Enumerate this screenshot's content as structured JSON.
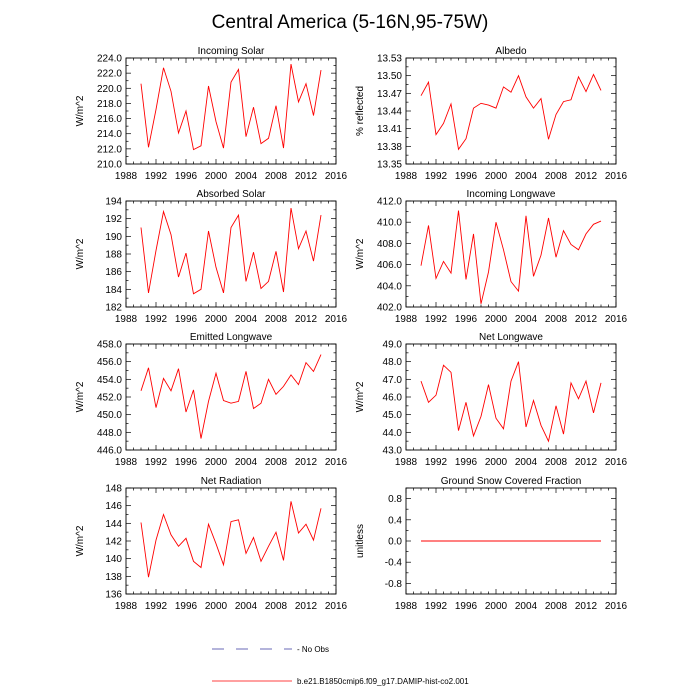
{
  "title": "Central America (5-16N,95-75W)",
  "colors": {
    "series": "#ff0000",
    "no_obs": "#3a3aa0",
    "axis": "#000000"
  },
  "legend": {
    "no_obs_label": "- No Obs",
    "model_label": "b.e21.B1850cmip6.f09_g17.DAMIP-hist-co2.001"
  },
  "chart_data": [
    {
      "type": "line",
      "title": "Incoming Solar",
      "ylabel": "W/m^2",
      "xlim": [
        1988,
        2016
      ],
      "ylim": [
        210,
        224
      ],
      "xticks": [
        1988,
        1992,
        1996,
        2000,
        2004,
        2008,
        2012,
        2016
      ],
      "yticks": [
        "210.0",
        "212.0",
        "214.0",
        "216.0",
        "218.0",
        "220.0",
        "222.0",
        "224.0"
      ],
      "x": [
        1990,
        1991,
        1992,
        1993,
        1994,
        1995,
        1996,
        1997,
        1998,
        1999,
        2000,
        2001,
        2002,
        2003,
        2004,
        2005,
        2006,
        2007,
        2008,
        2009,
        2010,
        2011,
        2012,
        2013,
        2014
      ],
      "series": [
        {
          "values": [
            220.6,
            212.2,
            217.2,
            222.7,
            219.6,
            214.1,
            217.0,
            211.9,
            212.4,
            220.3,
            215.6,
            212.1,
            220.8,
            222.5,
            213.6,
            217.5,
            212.7,
            213.4,
            217.7,
            212.1,
            223.2,
            218.2,
            220.6,
            216.4,
            222.4
          ]
        }
      ]
    },
    {
      "type": "line",
      "title": "Albedo",
      "ylabel": "% reflected",
      "xlim": [
        1988,
        2016
      ],
      "ylim": [
        13.35,
        13.53
      ],
      "xticks": [
        1988,
        1992,
        1996,
        2000,
        2004,
        2008,
        2012,
        2016
      ],
      "yticks": [
        "13.35",
        "13.38",
        "13.41",
        "13.44",
        "13.47",
        "13.50",
        "13.53"
      ],
      "x": [
        1990,
        1991,
        1992,
        1993,
        1994,
        1995,
        1996,
        1997,
        1998,
        1999,
        2000,
        2001,
        2002,
        2003,
        2004,
        2005,
        2006,
        2007,
        2008,
        2009,
        2010,
        2011,
        2012,
        2013,
        2014
      ],
      "series": [
        {
          "values": [
            13.466,
            13.489,
            13.4,
            13.419,
            13.452,
            13.375,
            13.393,
            13.445,
            13.453,
            13.45,
            13.445,
            13.481,
            13.472,
            13.5,
            13.464,
            13.445,
            13.461,
            13.392,
            13.434,
            13.456,
            13.459,
            13.498,
            13.473,
            13.502,
            13.475
          ]
        }
      ]
    },
    {
      "type": "line",
      "title": "Absorbed Solar",
      "ylabel": "W/m^2",
      "xlim": [
        1988,
        2016
      ],
      "ylim": [
        182,
        194
      ],
      "xticks": [
        1988,
        1992,
        1996,
        2000,
        2004,
        2008,
        2012,
        2016
      ],
      "yticks": [
        "182",
        "184",
        "186",
        "188",
        "190",
        "192",
        "194"
      ],
      "x": [
        1990,
        1991,
        1992,
        1993,
        1994,
        1995,
        1996,
        1997,
        1998,
        1999,
        2000,
        2001,
        2002,
        2003,
        2004,
        2005,
        2006,
        2007,
        2008,
        2009,
        2010,
        2011,
        2012,
        2013,
        2014
      ],
      "series": [
        {
          "values": [
            191.0,
            183.6,
            188.4,
            192.8,
            190.2,
            185.4,
            188.1,
            183.5,
            184.0,
            190.6,
            186.5,
            183.6,
            191.0,
            192.4,
            184.9,
            188.2,
            184.1,
            184.9,
            188.3,
            183.7,
            193.2,
            188.6,
            190.6,
            187.2,
            192.4
          ]
        }
      ]
    },
    {
      "type": "line",
      "title": "Incoming Longwave",
      "ylabel": "W/m^2",
      "xlim": [
        1988,
        2016
      ],
      "ylim": [
        402,
        412
      ],
      "xticks": [
        1988,
        1992,
        1996,
        2000,
        2004,
        2008,
        2012,
        2016
      ],
      "yticks": [
        "402.0",
        "404.0",
        "406.0",
        "408.0",
        "410.0",
        "412.0"
      ],
      "x": [
        1990,
        1991,
        1992,
        1993,
        1994,
        1995,
        1996,
        1997,
        1998,
        1999,
        2000,
        2001,
        2002,
        2003,
        2004,
        2005,
        2006,
        2007,
        2008,
        2009,
        2010,
        2011,
        2012,
        2013,
        2014
      ],
      "series": [
        {
          "values": [
            405.9,
            409.7,
            404.7,
            406.3,
            405.2,
            411.1,
            404.6,
            408.9,
            402.3,
            405.3,
            410.0,
            407.4,
            404.4,
            403.5,
            410.6,
            404.9,
            406.9,
            410.4,
            406.7,
            409.2,
            407.9,
            407.4,
            408.9,
            409.8,
            410.1
          ]
        }
      ]
    },
    {
      "type": "line",
      "title": "Emitted Longwave",
      "ylabel": "W/m^2",
      "xlim": [
        1988,
        2016
      ],
      "ylim": [
        446,
        458
      ],
      "xticks": [
        1988,
        1992,
        1996,
        2000,
        2004,
        2008,
        2012,
        2016
      ],
      "yticks": [
        "446.0",
        "448.0",
        "450.0",
        "452.0",
        "454.0",
        "456.0",
        "458.0"
      ],
      "x": [
        1990,
        1991,
        1992,
        1993,
        1994,
        1995,
        1996,
        1997,
        1998,
        1999,
        2000,
        2001,
        2002,
        2003,
        2004,
        2005,
        2006,
        2007,
        2008,
        2009,
        2010,
        2011,
        2012,
        2013,
        2014
      ],
      "series": [
        {
          "values": [
            452.7,
            455.3,
            450.8,
            454.1,
            452.7,
            455.2,
            450.3,
            452.8,
            447.3,
            451.5,
            454.7,
            451.6,
            451.3,
            451.5,
            454.9,
            450.7,
            451.3,
            454.0,
            452.3,
            453.2,
            454.5,
            453.4,
            455.9,
            454.9,
            456.8
          ]
        }
      ]
    },
    {
      "type": "line",
      "title": "Net Longwave",
      "ylabel": "W/m^2",
      "xlim": [
        1988,
        2016
      ],
      "ylim": [
        43,
        49
      ],
      "xticks": [
        1988,
        1992,
        1996,
        2000,
        2004,
        2008,
        2012,
        2016
      ],
      "yticks": [
        "43.0",
        "44.0",
        "45.0",
        "46.0",
        "47.0",
        "48.0",
        "49.0"
      ],
      "x": [
        1990,
        1991,
        1992,
        1993,
        1994,
        1995,
        1996,
        1997,
        1998,
        1999,
        2000,
        2001,
        2002,
        2003,
        2004,
        2005,
        2006,
        2007,
        2008,
        2009,
        2010,
        2011,
        2012,
        2013,
        2014
      ],
      "series": [
        {
          "values": [
            46.9,
            45.7,
            46.1,
            47.8,
            47.4,
            44.1,
            45.7,
            43.8,
            44.9,
            46.7,
            44.8,
            44.2,
            46.9,
            48.0,
            44.3,
            45.8,
            44.4,
            43.5,
            45.5,
            43.9,
            46.8,
            45.9,
            46.9,
            45.1,
            46.8
          ]
        }
      ]
    },
    {
      "type": "line",
      "title": "Net Radiation",
      "ylabel": "W/m^2",
      "xlim": [
        1988,
        2016
      ],
      "ylim": [
        136,
        148
      ],
      "xticks": [
        1988,
        1992,
        1996,
        2000,
        2004,
        2008,
        2012,
        2016
      ],
      "yticks": [
        "136",
        "138",
        "140",
        "142",
        "144",
        "146",
        "148"
      ],
      "x": [
        1990,
        1991,
        1992,
        1993,
        1994,
        1995,
        1996,
        1997,
        1998,
        1999,
        2000,
        2001,
        2002,
        2003,
        2004,
        2005,
        2006,
        2007,
        2008,
        2009,
        2010,
        2011,
        2012,
        2013,
        2014
      ],
      "series": [
        {
          "values": [
            144.1,
            137.9,
            142.1,
            145.0,
            142.7,
            141.4,
            142.3,
            139.7,
            139.0,
            143.9,
            141.7,
            139.3,
            144.2,
            144.4,
            140.6,
            142.4,
            139.7,
            141.4,
            143.0,
            139.8,
            146.5,
            142.9,
            143.9,
            142.1,
            145.7
          ]
        }
      ]
    },
    {
      "type": "line",
      "title": "Ground Snow Covered Fraction",
      "ylabel": "unitless",
      "xlim": [
        1988,
        2016
      ],
      "ylim": [
        -1.0,
        1.0
      ],
      "xticks": [
        1988,
        1992,
        1996,
        2000,
        2004,
        2008,
        2012,
        2016
      ],
      "yticks": [
        "-0.8",
        "-0.4",
        "0.0",
        "0.4",
        "0.8"
      ],
      "ytick_values": [
        -0.8,
        -0.4,
        0.0,
        0.4,
        0.8
      ],
      "x": [
        1990,
        1991,
        1992,
        1993,
        1994,
        1995,
        1996,
        1997,
        1998,
        1999,
        2000,
        2001,
        2002,
        2003,
        2004,
        2005,
        2006,
        2007,
        2008,
        2009,
        2010,
        2011,
        2012,
        2013,
        2014
      ],
      "series": [
        {
          "values": [
            0,
            0,
            0,
            0,
            0,
            0,
            0,
            0,
            0,
            0,
            0,
            0,
            0,
            0,
            0,
            0,
            0,
            0,
            0,
            0,
            0,
            0,
            0,
            0,
            0
          ]
        }
      ]
    }
  ]
}
